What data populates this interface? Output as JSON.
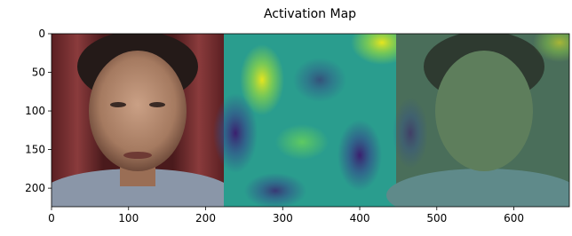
{
  "chart_data": {
    "type": "image",
    "title": "Activation Map",
    "xlim": [
      0,
      672
    ],
    "ylim": [
      224,
      0
    ],
    "xticks": [
      0,
      100,
      200,
      300,
      400,
      500,
      600
    ],
    "yticks": [
      0,
      50,
      100,
      150,
      200
    ]
  }
}
